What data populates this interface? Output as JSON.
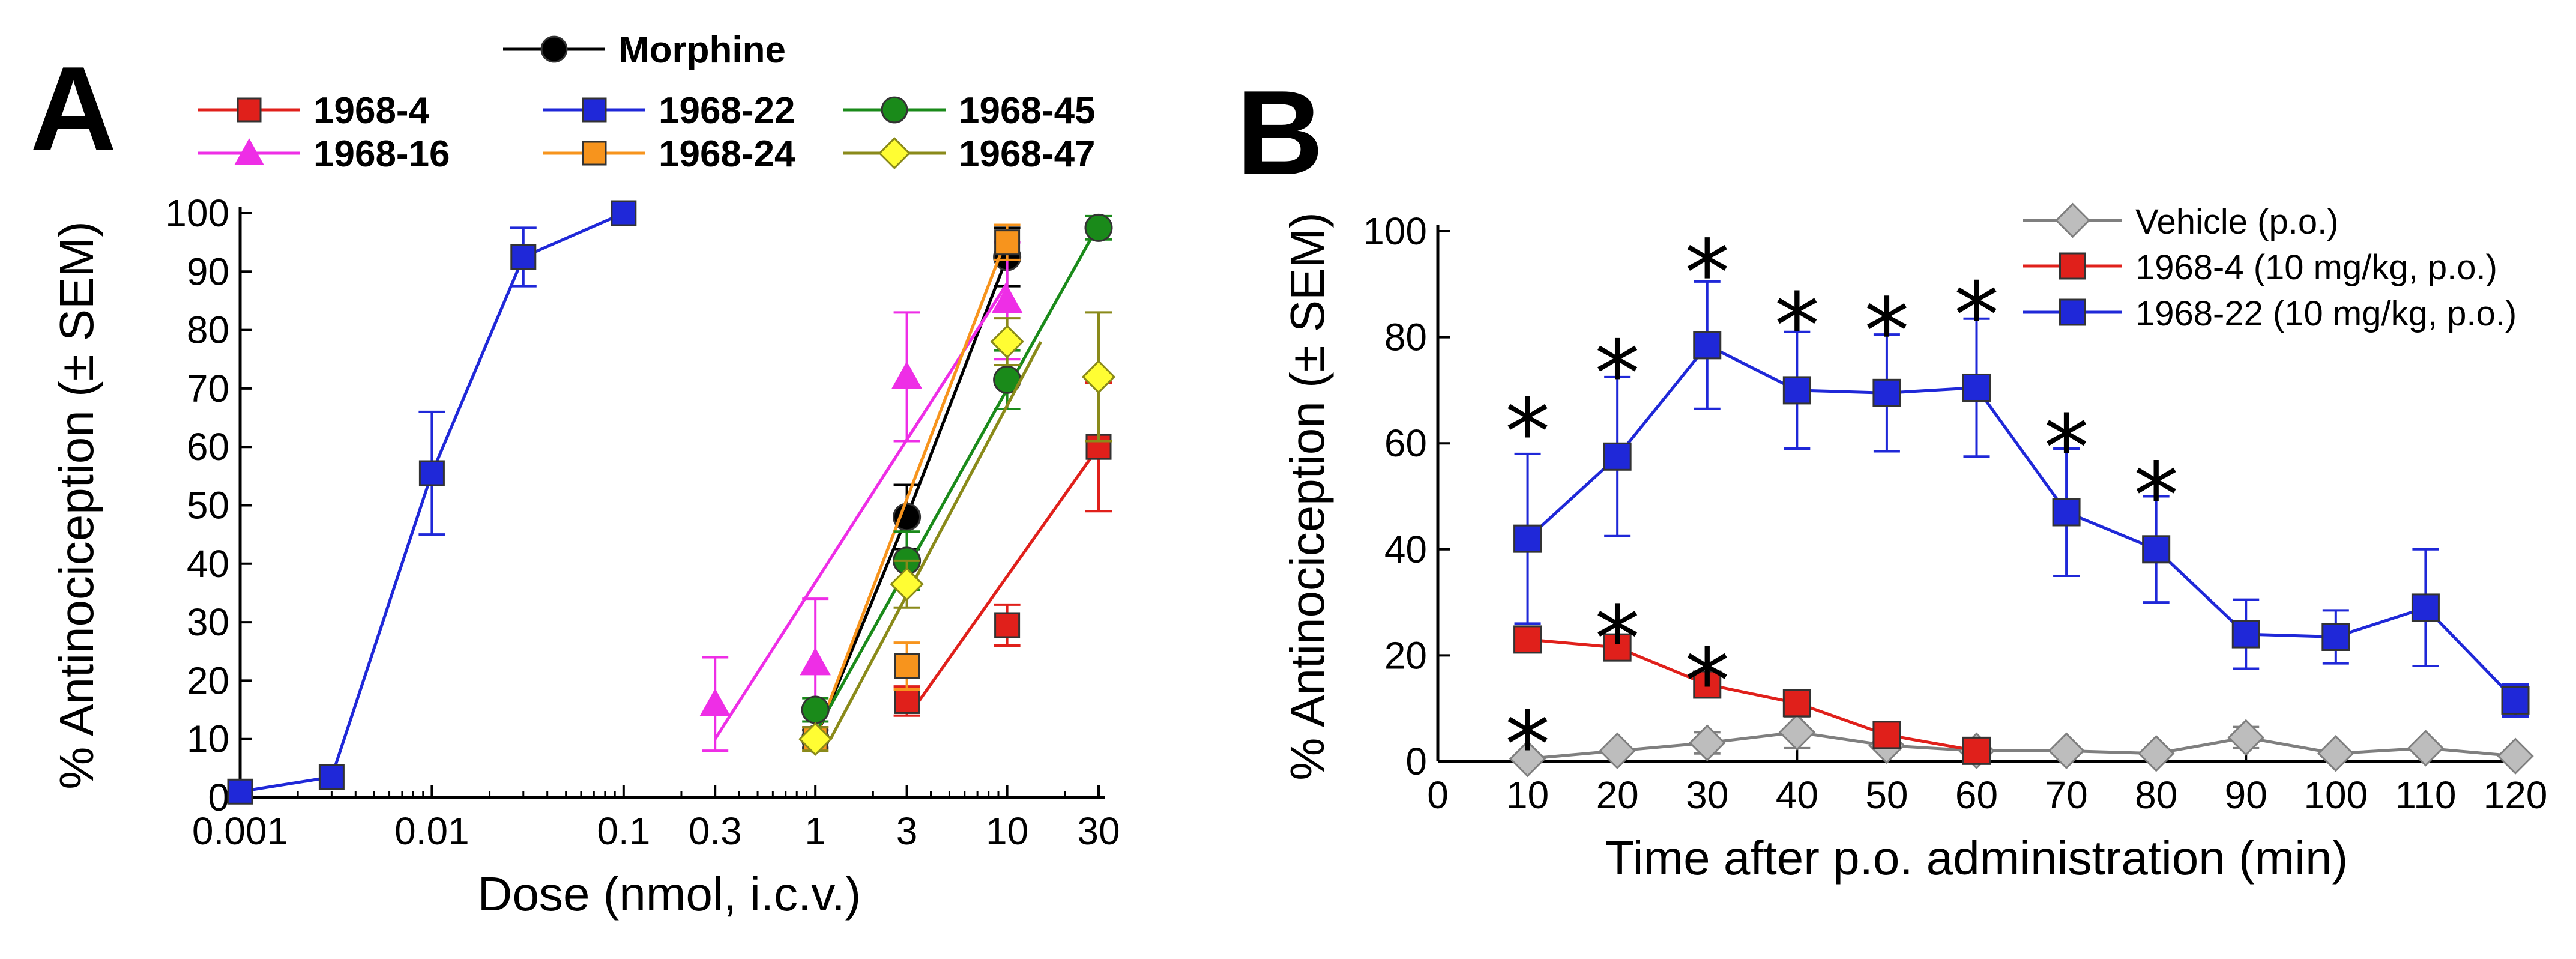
{
  "panels": {
    "a": "A",
    "b": "B"
  },
  "chart_data": [
    {
      "type": "line",
      "panel": "A",
      "xscale": "log",
      "xlabel": "Dose (nmol, i.c.v.)",
      "ylabel": "% Antinociception (± SEM)",
      "xlim": [
        0.001,
        30
      ],
      "ylim": [
        0,
        100
      ],
      "xticks": [
        {
          "value": 0.001,
          "label": "0.001"
        },
        {
          "value": 0.01,
          "label": "0.01"
        },
        {
          "value": 0.1,
          "label": "0.1"
        },
        {
          "value": 0.3,
          "label": "0.3"
        },
        {
          "value": 1,
          "label": "1"
        },
        {
          "value": 3,
          "label": "3"
        },
        {
          "value": 10,
          "label": "10"
        },
        {
          "value": 30,
          "label": "30"
        }
      ],
      "yticks": [
        {
          "value": 0,
          "label": "0"
        },
        {
          "value": 10,
          "label": "10"
        },
        {
          "value": 20,
          "label": "20"
        },
        {
          "value": 30,
          "label": "30"
        },
        {
          "value": 40,
          "label": "40"
        },
        {
          "value": 50,
          "label": "50"
        },
        {
          "value": 60,
          "label": "60"
        },
        {
          "value": 70,
          "label": "70"
        },
        {
          "value": 80,
          "label": "80"
        },
        {
          "value": 90,
          "label": "90"
        },
        {
          "value": 100,
          "label": "100"
        }
      ],
      "series": [
        {
          "name": "Morphine",
          "color": "#000000",
          "marker": "circle",
          "connect": true,
          "points": [
            {
              "x": 1,
              "y": 10,
              "err": 1.5
            },
            {
              "x": 3,
              "y": 48,
              "err": 5.5
            },
            {
              "x": 10,
              "y": 92.5,
              "err": 5
            }
          ]
        },
        {
          "name": "1968-4",
          "color": "#e0201b",
          "marker": "square",
          "fit": [
            [
              3.3,
              15.5
            ],
            [
              30,
              60
            ]
          ],
          "points": [
            {
              "x": 3,
              "y": 16.5,
              "err": 2.5
            },
            {
              "x": 10,
              "y": 29.5,
              "err": 3.5
            },
            {
              "x": 30,
              "y": 60,
              "err": 11
            }
          ]
        },
        {
          "name": "1968-16",
          "color": "#ee2ee6",
          "marker": "triangle",
          "fit": [
            [
              0.3,
              10
            ],
            [
              10,
              88
            ]
          ],
          "points": [
            {
              "x": 0.3,
              "y": 16,
              "err": 8
            },
            {
              "x": 1,
              "y": 23,
              "err": 11
            },
            {
              "x": 3,
              "y": 72,
              "err": 11
            },
            {
              "x": 10,
              "y": 85,
              "err": 10
            }
          ]
        },
        {
          "name": "1968-22",
          "color": "#1f28d8",
          "marker": "square",
          "connect": true,
          "points": [
            {
              "x": 0.001,
              "y": 1,
              "err": 0
            },
            {
              "x": 0.003,
              "y": 3.5,
              "err": 0
            },
            {
              "x": 0.01,
              "y": 55.5,
              "err": 10.5
            },
            {
              "x": 0.03,
              "y": 92.5,
              "err": 5
            },
            {
              "x": 0.1,
              "y": 100,
              "err": 0
            }
          ]
        },
        {
          "name": "1968-24",
          "color": "#f7941d",
          "marker": "square",
          "fit": [
            [
              1,
              10
            ],
            [
              10,
              96
            ]
          ],
          "points": [
            {
              "x": 1,
              "y": 10,
              "err": 2
            },
            {
              "x": 3,
              "y": 22.5,
              "err": 4
            },
            {
              "x": 10,
              "y": 95,
              "err": 3
            }
          ]
        },
        {
          "name": "1968-45",
          "color": "#1a8a1a",
          "marker": "circle",
          "fit": [
            [
              1,
              11
            ],
            [
              30,
              98
            ]
          ],
          "points": [
            {
              "x": 1,
              "y": 15,
              "err": 2
            },
            {
              "x": 3,
              "y": 40.5,
              "err": 5
            },
            {
              "x": 10,
              "y": 71.5,
              "err": 5
            },
            {
              "x": 30,
              "y": 97.5,
              "err": 2
            }
          ]
        },
        {
          "name": "1968-47",
          "color": "#8a8a1a",
          "marker": "diamond",
          "fill": "#fffd33",
          "fit": [
            [
              1.2,
              10
            ],
            [
              15,
              78
            ]
          ],
          "points": [
            {
              "x": 1,
              "y": 10,
              "err": 2
            },
            {
              "x": 3,
              "y": 36.5,
              "err": 4
            },
            {
              "x": 10,
              "y": 78,
              "err": 4
            },
            {
              "x": 30,
              "y": 72,
              "err": 11
            }
          ]
        }
      ]
    },
    {
      "type": "line",
      "panel": "B",
      "xlabel": "Time after p.o. administration (min)",
      "ylabel": "% Antinociception (± SEM)",
      "xlim": [
        0,
        120
      ],
      "ylim": [
        0,
        100
      ],
      "xticks": [
        {
          "value": 0,
          "label": "0"
        },
        {
          "value": 10,
          "label": "10"
        },
        {
          "value": 20,
          "label": "20"
        },
        {
          "value": 30,
          "label": "30"
        },
        {
          "value": 40,
          "label": "40"
        },
        {
          "value": 50,
          "label": "50"
        },
        {
          "value": 60,
          "label": "60"
        },
        {
          "value": 70,
          "label": "70"
        },
        {
          "value": 80,
          "label": "80"
        },
        {
          "value": 90,
          "label": "90"
        },
        {
          "value": 100,
          "label": "100"
        },
        {
          "value": 110,
          "label": "110"
        },
        {
          "value": 120,
          "label": "120"
        }
      ],
      "yticks": [
        {
          "value": 0,
          "label": "0"
        },
        {
          "value": 20,
          "label": "20"
        },
        {
          "value": 40,
          "label": "40"
        },
        {
          "value": 60,
          "label": "60"
        },
        {
          "value": 80,
          "label": "80"
        },
        {
          "value": 100,
          "label": "100"
        }
      ],
      "series": [
        {
          "name": "Vehicle (p.o.)",
          "color": "#7f7f7f",
          "marker": "diamond",
          "fill": "#bdbdbd",
          "points": [
            {
              "x": 10,
              "y": 0.5,
              "err": 0
            },
            {
              "x": 20,
              "y": 2,
              "err": 0
            },
            {
              "x": 30,
              "y": 3.5,
              "err": 2
            },
            {
              "x": 40,
              "y": 5.5,
              "err": 3
            },
            {
              "x": 50,
              "y": 3,
              "err": 0
            },
            {
              "x": 60,
              "y": 2,
              "err": 0
            },
            {
              "x": 70,
              "y": 2,
              "err": 0
            },
            {
              "x": 80,
              "y": 1.5,
              "err": 0
            },
            {
              "x": 90,
              "y": 4.5,
              "err": 2
            },
            {
              "x": 100,
              "y": 1.5,
              "err": 0
            },
            {
              "x": 110,
              "y": 2.5,
              "err": 0
            },
            {
              "x": 120,
              "y": 1,
              "err": 0
            }
          ]
        },
        {
          "name": "1968-4 (10 mg/kg, p.o.)",
          "color": "#e0201b",
          "marker": "square",
          "points": [
            {
              "x": 10,
              "y": 23,
              "err": 2
            },
            {
              "x": 20,
              "y": 21.5,
              "err": 0
            },
            {
              "x": 30,
              "y": 14.5,
              "err": 0
            },
            {
              "x": 40,
              "y": 11,
              "err": 0
            },
            {
              "x": 50,
              "y": 5,
              "err": 0
            },
            {
              "x": 60,
              "y": 2,
              "err": 0
            }
          ]
        },
        {
          "name": "1968-22 (10 mg/kg, p.o.)",
          "color": "#1f28d8",
          "marker": "square",
          "points": [
            {
              "x": 10,
              "y": 42,
              "err": 16
            },
            {
              "x": 20,
              "y": 57.5,
              "err": 15
            },
            {
              "x": 30,
              "y": 78.5,
              "err": 12
            },
            {
              "x": 40,
              "y": 70,
              "err": 11
            },
            {
              "x": 50,
              "y": 69.5,
              "err": 11
            },
            {
              "x": 60,
              "y": 70.5,
              "err": 13
            },
            {
              "x": 70,
              "y": 47,
              "err": 12
            },
            {
              "x": 80,
              "y": 40,
              "err": 10
            },
            {
              "x": 90,
              "y": 24,
              "err": 6.5
            },
            {
              "x": 100,
              "y": 23.5,
              "err": 5
            },
            {
              "x": 110,
              "y": 29,
              "err": 11
            },
            {
              "x": 120,
              "y": 11.5,
              "err": 3
            }
          ]
        }
      ],
      "annotations": [
        {
          "text": "*",
          "x": 10,
          "y": 67
        },
        {
          "text": "*",
          "x": 20,
          "y": 78
        },
        {
          "text": "*",
          "x": 30,
          "y": 97
        },
        {
          "text": "*",
          "x": 40,
          "y": 87
        },
        {
          "text": "*",
          "x": 50,
          "y": 86
        },
        {
          "text": "*",
          "x": 60,
          "y": 89
        },
        {
          "text": "*",
          "x": 70,
          "y": 64
        },
        {
          "text": "*",
          "x": 80,
          "y": 55
        },
        {
          "text": "*",
          "x": 20,
          "y": 28
        },
        {
          "text": "*",
          "x": 30,
          "y": 20
        },
        {
          "text": "*",
          "x": 10,
          "y": 8
        }
      ]
    }
  ]
}
